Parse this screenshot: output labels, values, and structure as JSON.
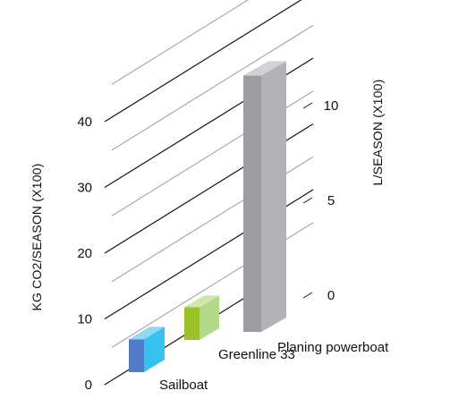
{
  "chart_data": {
    "type": "bar",
    "categories": [
      "Sailboat",
      "Greenline 33",
      "Planing powerboat"
    ],
    "series": [
      {
        "values": [
          5,
          5,
          39
        ]
      }
    ],
    "left_axis": {
      "label": "KG CO2/SEASON (X100)",
      "ticks": [
        "0",
        "10",
        "20",
        "30",
        "40"
      ],
      "ylim": [
        0,
        40
      ]
    },
    "right_axis": {
      "label": "L/SEASON (X100)",
      "ticks": [
        "0",
        "5",
        "10"
      ],
      "ylim": [
        0,
        10
      ]
    },
    "grid": true,
    "colors": {
      "sailboat_front": "#4f7cc4",
      "sailboat_side": "#38c0f0",
      "sailboat_top": "#8fd8f7",
      "greenline_front": "#9cc22a",
      "greenline_side": "#b3d98a",
      "greenline_top": "#cfe7ab",
      "powerboat_front": "#9c9ca2",
      "powerboat_side": "#b2b2b8",
      "powerboat_top": "#d2d2d6",
      "grid_major": "#111111",
      "grid_minor": "#9a9a9a"
    }
  }
}
